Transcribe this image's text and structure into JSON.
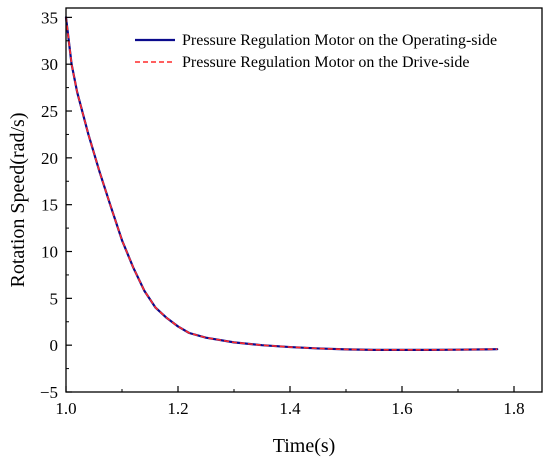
{
  "chart_data": {
    "type": "line",
    "title": "",
    "xlabel": "Time(s)",
    "ylabel": "Rotation Speed(rad/s)",
    "xlim": [
      1.0,
      1.85
    ],
    "ylim": [
      -5,
      36
    ],
    "xticks": [
      1.0,
      1.2,
      1.4,
      1.6,
      1.8
    ],
    "xtick_labels": [
      "1.0",
      "1.2",
      "1.4",
      "1.6",
      "1.8"
    ],
    "yticks": [
      -5,
      0,
      5,
      10,
      15,
      20,
      25,
      30,
      35
    ],
    "ytick_labels": [
      "−5",
      "0",
      "5",
      "10",
      "15",
      "20",
      "25",
      "30",
      "35"
    ],
    "grid": false,
    "legend_position": "top-right",
    "series": [
      {
        "name": "Pressure Regulation Motor on the Operating-side",
        "color": "#0a0a8c",
        "style": "solid",
        "x": [
          1.0,
          1.01,
          1.02,
          1.04,
          1.06,
          1.08,
          1.1,
          1.12,
          1.14,
          1.16,
          1.18,
          1.2,
          1.22,
          1.25,
          1.3,
          1.35,
          1.4,
          1.45,
          1.5,
          1.55,
          1.6,
          1.65,
          1.7,
          1.75,
          1.77
        ],
        "y": [
          35.0,
          30.0,
          27.0,
          22.5,
          18.5,
          14.8,
          11.2,
          8.3,
          5.8,
          4.0,
          2.9,
          2.0,
          1.3,
          0.8,
          0.3,
          0.0,
          -0.2,
          -0.35,
          -0.45,
          -0.5,
          -0.5,
          -0.5,
          -0.48,
          -0.45,
          -0.43
        ]
      },
      {
        "name": "Pressure Regulation Motor on the Drive-side",
        "color": "#ff2a2a",
        "style": "dashed",
        "x": [
          1.0,
          1.01,
          1.02,
          1.04,
          1.06,
          1.08,
          1.1,
          1.12,
          1.14,
          1.16,
          1.18,
          1.2,
          1.22,
          1.25,
          1.3,
          1.35,
          1.4,
          1.45,
          1.5,
          1.55,
          1.6,
          1.65,
          1.7,
          1.75,
          1.77
        ],
        "y": [
          35.0,
          30.0,
          27.0,
          22.5,
          18.5,
          14.8,
          11.2,
          8.3,
          5.8,
          4.0,
          2.9,
          2.0,
          1.3,
          0.8,
          0.3,
          0.0,
          -0.2,
          -0.35,
          -0.45,
          -0.5,
          -0.5,
          -0.5,
          -0.48,
          -0.45,
          -0.43
        ]
      }
    ]
  }
}
